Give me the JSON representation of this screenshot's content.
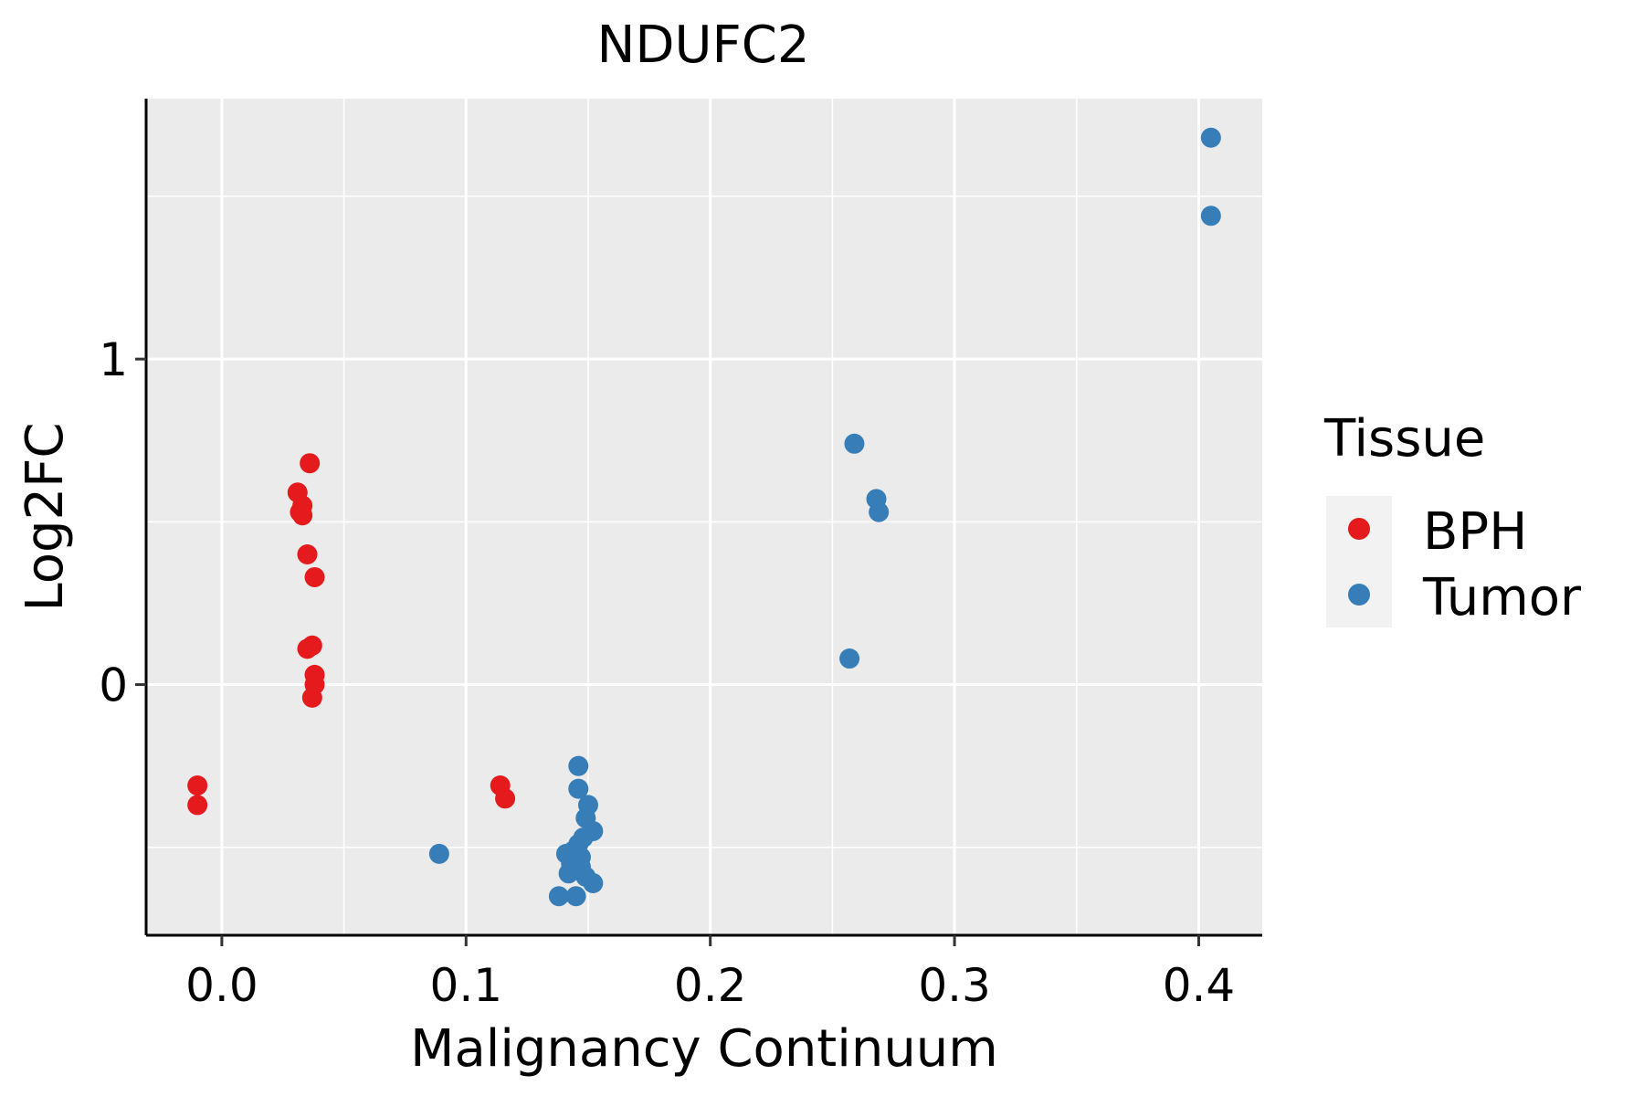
{
  "chart_data": {
    "type": "scatter",
    "title": "NDUFC2",
    "xlabel": "Malignancy Continuum",
    "ylabel": "Log2FC",
    "xlim": [
      -0.031,
      0.426
    ],
    "ylim": [
      -0.77,
      1.8
    ],
    "x_ticks": [
      {
        "value": 0.0,
        "label": "0.0"
      },
      {
        "value": 0.1,
        "label": "0.1"
      },
      {
        "value": 0.2,
        "label": "0.2"
      },
      {
        "value": 0.3,
        "label": "0.3"
      },
      {
        "value": 0.4,
        "label": "0.4"
      }
    ],
    "y_ticks": [
      {
        "value": 0,
        "label": "0"
      },
      {
        "value": 1,
        "label": "1"
      }
    ],
    "grid": true,
    "legend": {
      "title": "Tissue",
      "position": "right"
    },
    "series": [
      {
        "name": "BPH",
        "color": "#E41A1C",
        "points": [
          {
            "x": -0.01,
            "y": -0.31
          },
          {
            "x": -0.01,
            "y": -0.37
          },
          {
            "x": 0.036,
            "y": 0.68
          },
          {
            "x": 0.031,
            "y": 0.59
          },
          {
            "x": 0.033,
            "y": 0.55
          },
          {
            "x": 0.032,
            "y": 0.53
          },
          {
            "x": 0.033,
            "y": 0.52
          },
          {
            "x": 0.035,
            "y": 0.4
          },
          {
            "x": 0.038,
            "y": 0.33
          },
          {
            "x": 0.037,
            "y": 0.12
          },
          {
            "x": 0.035,
            "y": 0.11
          },
          {
            "x": 0.038,
            "y": 0.03
          },
          {
            "x": 0.038,
            "y": 0.0
          },
          {
            "x": 0.037,
            "y": -0.04
          },
          {
            "x": 0.114,
            "y": -0.31
          },
          {
            "x": 0.116,
            "y": -0.35
          }
        ]
      },
      {
        "name": "Tumor",
        "color": "#377EB8",
        "points": [
          {
            "x": 0.089,
            "y": -0.52
          },
          {
            "x": 0.146,
            "y": -0.25
          },
          {
            "x": 0.146,
            "y": -0.32
          },
          {
            "x": 0.15,
            "y": -0.37
          },
          {
            "x": 0.149,
            "y": -0.41
          },
          {
            "x": 0.152,
            "y": -0.45
          },
          {
            "x": 0.148,
            "y": -0.47
          },
          {
            "x": 0.146,
            "y": -0.49
          },
          {
            "x": 0.144,
            "y": -0.51
          },
          {
            "x": 0.141,
            "y": -0.52
          },
          {
            "x": 0.147,
            "y": -0.53
          },
          {
            "x": 0.143,
            "y": -0.55
          },
          {
            "x": 0.147,
            "y": -0.56
          },
          {
            "x": 0.146,
            "y": -0.57
          },
          {
            "x": 0.149,
            "y": -0.59
          },
          {
            "x": 0.142,
            "y": -0.58
          },
          {
            "x": 0.152,
            "y": -0.61
          },
          {
            "x": 0.138,
            "y": -0.65
          },
          {
            "x": 0.145,
            "y": -0.65
          },
          {
            "x": 0.257,
            "y": 0.08
          },
          {
            "x": 0.259,
            "y": 0.74
          },
          {
            "x": 0.268,
            "y": 0.57
          },
          {
            "x": 0.269,
            "y": 0.53
          },
          {
            "x": 0.405,
            "y": 1.68
          },
          {
            "x": 0.405,
            "y": 1.44
          }
        ]
      }
    ]
  }
}
